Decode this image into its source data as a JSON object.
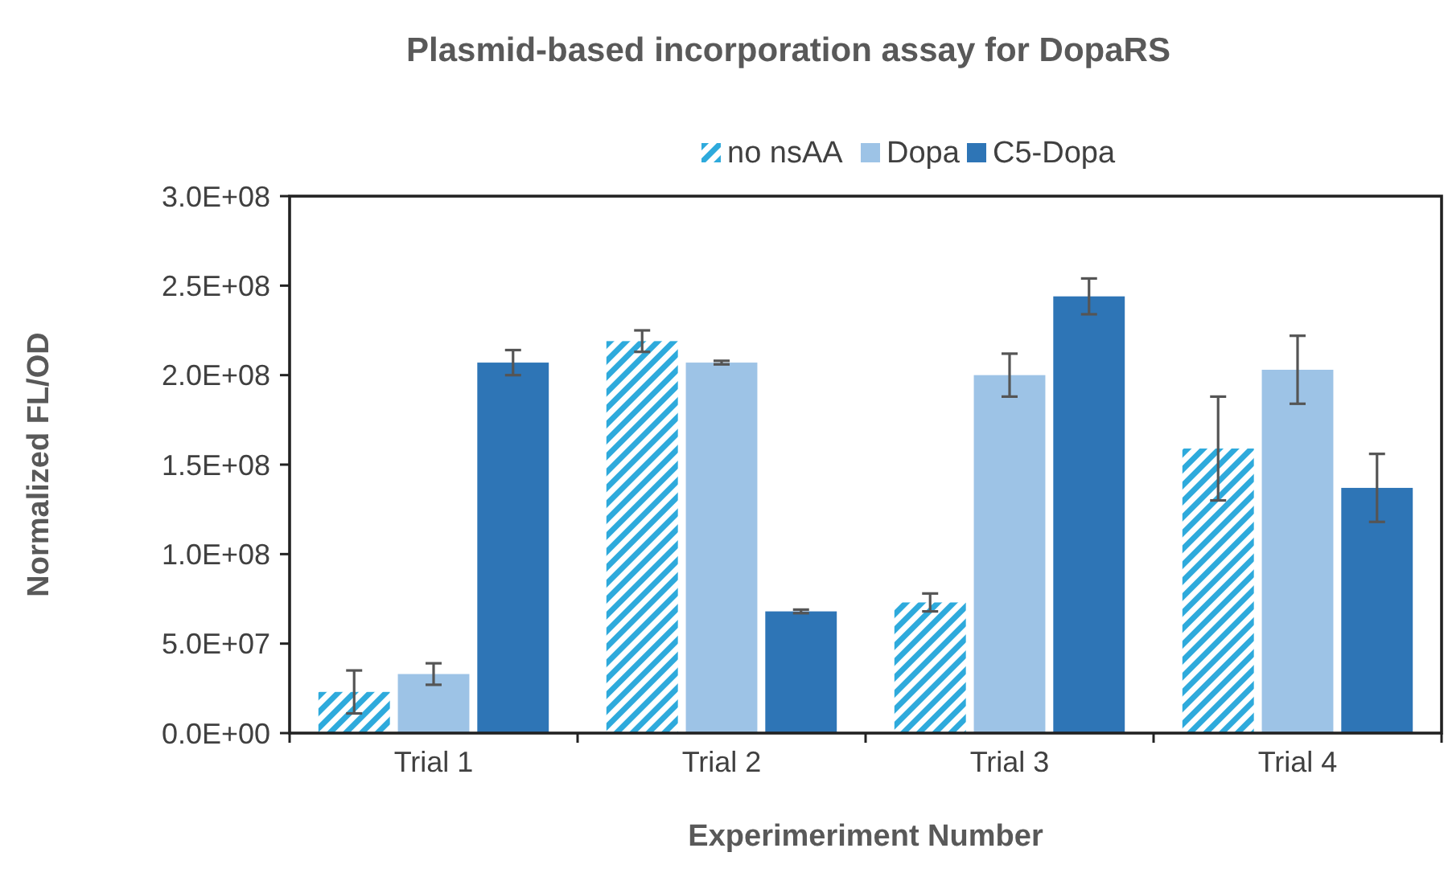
{
  "chart_data": {
    "type": "bar",
    "title": "Plasmid-based incorporation assay for DopaRS",
    "xlabel": "Experimeriment  Number",
    "ylabel": "Normalized  FL/OD",
    "categories": [
      "Trial 1",
      "Trial 2",
      "Trial 3",
      "Trial 4"
    ],
    "series": [
      {
        "name": "no nsAA",
        "color": "#2eaadc",
        "values": [
          23000000,
          219000000,
          73000000,
          159000000
        ],
        "errors": [
          12000000,
          6000000,
          5000000,
          29000000
        ]
      },
      {
        "name": "Dopa",
        "color": "#9dc3e6",
        "values": [
          33000000,
          207000000,
          200000000,
          203000000
        ],
        "errors": [
          6000000,
          1000000,
          12000000,
          19000000
        ]
      },
      {
        "name": "C5-Dopa",
        "color": "#2e75b6",
        "values": [
          207000000,
          68000000,
          244000000,
          137000000
        ],
        "errors": [
          7000000,
          1000000,
          10000000,
          19000000
        ]
      }
    ],
    "ylim": [
      0,
      300000000
    ],
    "yticks": [
      {
        "value": 0,
        "label": "0.0E+00"
      },
      {
        "value": 50000000,
        "label": "5.0E+07"
      },
      {
        "value": 100000000,
        "label": "1.0E+08"
      },
      {
        "value": 150000000,
        "label": "1.5E+08"
      },
      {
        "value": 200000000,
        "label": "2.0E+08"
      },
      {
        "value": 250000000,
        "label": "2.5E+08"
      },
      {
        "value": 300000000,
        "label": "3.0E+08"
      }
    ],
    "grid": false,
    "legend": "top"
  }
}
